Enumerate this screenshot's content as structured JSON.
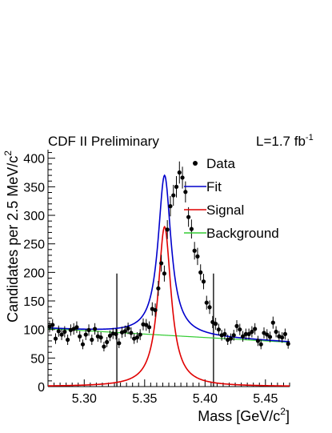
{
  "chart_data": {
    "type": "scatter",
    "header_left": "CDF II Preliminary",
    "header_right": "L=1.7 fb",
    "header_right_sup": "-1",
    "xlabel": "Mass [GeV/c",
    "xlabel_sup": "2",
    "xlabel_end": "]",
    "ylabel": "Candidates per 2.5 MeV/c",
    "ylabel_sup": "2",
    "xlim": [
      5.27,
      5.47
    ],
    "ylim": [
      0,
      415
    ],
    "x_ticks": [
      {
        "v": 5.3,
        "label": "5.30"
      },
      {
        "v": 5.35,
        "label": "5.35"
      },
      {
        "v": 5.4,
        "label": "5.40"
      },
      {
        "v": 5.45,
        "label": "5.45"
      }
    ],
    "y_ticks": [
      {
        "v": 0,
        "label": "0"
      },
      {
        "v": 50,
        "label": "50"
      },
      {
        "v": 100,
        "label": "100"
      },
      {
        "v": 150,
        "label": "150"
      },
      {
        "v": 200,
        "label": "200"
      },
      {
        "v": 250,
        "label": "250"
      },
      {
        "v": 300,
        "label": "300"
      },
      {
        "v": 350,
        "label": "350"
      },
      {
        "v": 400,
        "label": "400"
      }
    ],
    "signal_window_lines": [
      {
        "x": 5.327,
        "y_top": 198
      },
      {
        "x": 5.407,
        "y_top": 198
      }
    ],
    "legend": [
      {
        "label": "Data",
        "kind": "marker",
        "color": "#000000"
      },
      {
        "label": "Fit",
        "kind": "line",
        "color": "#0000cc"
      },
      {
        "label": "Signal",
        "kind": "line",
        "color": "#e00000"
      },
      {
        "label": "Background",
        "kind": "line",
        "color": "#33cc33"
      }
    ],
    "model": {
      "mean": 5.3665,
      "signal_peak": 280,
      "signal_hwhm": 0.0065,
      "background_slope": -12.0
    },
    "series": [
      {
        "name": "Data",
        "color": "#000000",
        "x": [
          5.2713,
          5.2738,
          5.2763,
          5.2788,
          5.2813,
          5.2838,
          5.2863,
          5.2888,
          5.2913,
          5.2938,
          5.2963,
          5.2988,
          5.3013,
          5.3038,
          5.3063,
          5.3088,
          5.3113,
          5.3138,
          5.3163,
          5.3188,
          5.3213,
          5.3238,
          5.3263,
          5.3288,
          5.3313,
          5.3338,
          5.3363,
          5.3388,
          5.3413,
          5.3438,
          5.3463,
          5.3488,
          5.3513,
          5.3538,
          5.3563,
          5.3588,
          5.3613,
          5.3638,
          5.3663,
          5.3688,
          5.3713,
          5.3738,
          5.3763,
          5.3788,
          5.3813,
          5.3838,
          5.3863,
          5.3888,
          5.3913,
          5.3938,
          5.3963,
          5.3988,
          5.4013,
          5.4038,
          5.4063,
          5.4088,
          5.4113,
          5.4138,
          5.4163,
          5.4188,
          5.4213,
          5.4238,
          5.4263,
          5.4288,
          5.4313,
          5.4338,
          5.4363,
          5.4388,
          5.4413,
          5.4438,
          5.4463,
          5.4488,
          5.4513,
          5.4538,
          5.4563,
          5.4588,
          5.4613,
          5.4638,
          5.4663,
          5.4688
        ],
        "values": [
          105,
          108,
          84,
          97,
          91,
          96,
          82,
          99,
          101,
          104,
          88,
          74,
          91,
          99,
          82,
          101,
          88,
          86,
          70,
          78,
          89,
          93,
          92,
          76,
          95,
          97,
          102,
          94,
          84,
          86,
          91,
          109,
          108,
          104,
          136,
          134,
          172,
          216,
          198,
          275,
          316,
          335,
          350,
          375,
          366,
          341,
          297,
          276,
          238,
          228,
          200,
          184,
          147,
          139,
          113,
          110,
          100,
          90,
          92,
          82,
          84,
          90,
          106,
          100,
          88,
          92,
          92,
          96,
          101,
          80,
          74,
          94,
          91,
          87,
          112,
          96,
          88,
          86,
          92,
          75
        ]
      }
    ]
  }
}
